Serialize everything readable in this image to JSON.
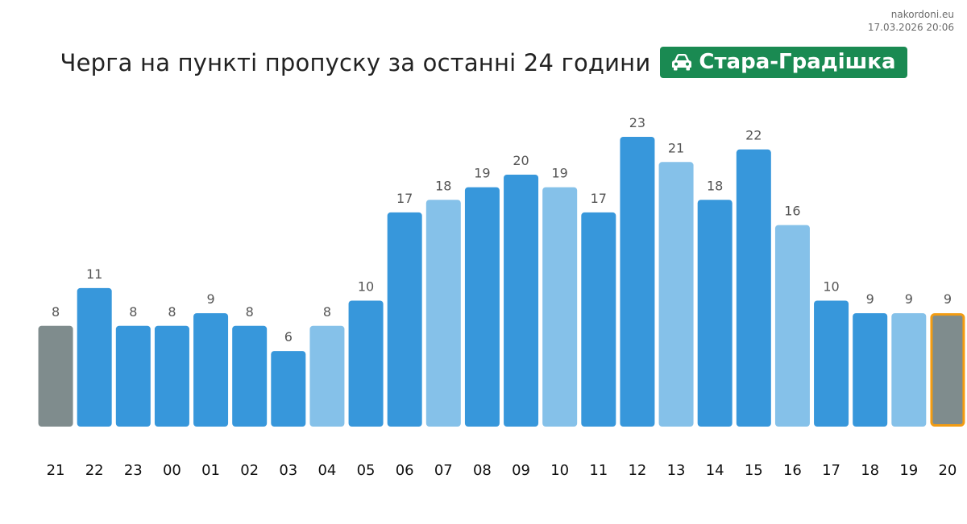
{
  "source": {
    "site": "nakordoni.eu",
    "timestamp": "17.03.2026 20:06"
  },
  "header": {
    "title": "Черга на пункті пропуску за останні 24 години",
    "badge_label": "Стара-Градішка",
    "badge_icon": "car-icon"
  },
  "colors": {
    "badge": "#1a8a52",
    "bar_dark": "#3797db",
    "bar_light": "#85c1e9",
    "bar_gray": "#7f8c8d",
    "highlight_border": "#f39c12"
  },
  "chart_data": {
    "type": "bar",
    "categories": [
      "21",
      "22",
      "23",
      "00",
      "01",
      "02",
      "03",
      "04",
      "05",
      "06",
      "07",
      "08",
      "09",
      "10",
      "11",
      "12",
      "13",
      "14",
      "15",
      "16",
      "17",
      "18",
      "19",
      "20"
    ],
    "values": [
      8,
      11,
      8,
      8,
      9,
      8,
      6,
      8,
      10,
      17,
      18,
      19,
      20,
      19,
      17,
      23,
      21,
      18,
      22,
      16,
      10,
      9,
      9,
      9
    ],
    "bar_styles": [
      "gray",
      "dark",
      "dark",
      "dark",
      "dark",
      "dark",
      "dark",
      "light",
      "dark",
      "dark",
      "light",
      "dark",
      "dark",
      "light",
      "dark",
      "dark",
      "light",
      "dark",
      "dark",
      "light",
      "dark",
      "dark",
      "light",
      "gray"
    ],
    "highlighted_index": 23,
    "ylim": [
      0,
      23
    ],
    "grid": false,
    "legend": false,
    "data_labels": true
  }
}
